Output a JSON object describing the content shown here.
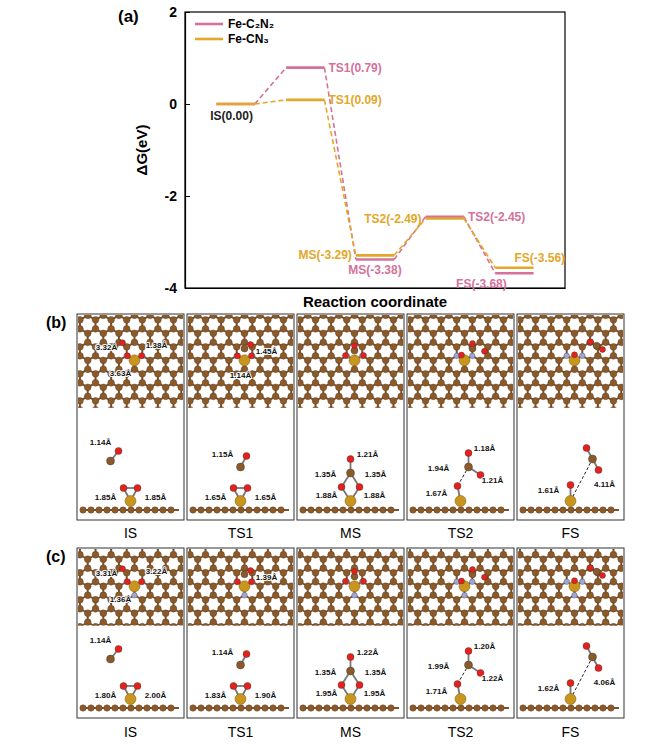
{
  "chart_data": {
    "type": "line",
    "title": "(a)",
    "x_label": "Reaction coordinate",
    "y_label": "ΔG(eV)",
    "categories": [
      null,
      null,
      null,
      null,
      null
    ],
    "series": [
      {
        "name": "Fe-C₂N₂",
        "color": "#d4729c",
        "values": [
          0.0,
          0.79,
          -3.38,
          -2.45,
          -3.68
        ],
        "value_labels": [
          null,
          "TS1(0.79)",
          "MS(-3.38)",
          "TS2(-2.45)",
          "FS(-3.68)"
        ]
      },
      {
        "name": "Fe-CN₃",
        "color": "#e3a72a",
        "values": [
          0.0,
          0.09,
          -3.29,
          -2.49,
          -3.56
        ],
        "value_labels": [
          null,
          "TS1(0.09)",
          "MS(-3.29)",
          "TS2(-2.49)",
          "FS(-3.56)"
        ]
      }
    ],
    "annotations": [
      "IS(0.00)"
    ],
    "ylim": [
      -4,
      2
    ],
    "yticks": [
      -4,
      -2,
      0,
      2
    ],
    "legend": "upper left",
    "data_labels": true,
    "tick_labels": "y",
    "line_style": "dashed"
  },
  "structures": [
    {
      "label": "(b)",
      "states": [
        {
          "name": "IS",
          "top_labels": [
            "3.32Å",
            "1.38Å",
            "3.63Å"
          ],
          "side_labels": [
            "1.14Å",
            "1.85Å",
            "1.85Å"
          ]
        },
        {
          "name": "TS1",
          "top_labels": [
            "1.45Å",
            "1.14Å"
          ],
          "side_labels": [
            "1.15Å",
            "1.65Å",
            "1.65Å"
          ]
        },
        {
          "name": "MS",
          "top_labels": [],
          "side_labels": [
            "1.35Å",
            "1.21Å",
            "1.35Å",
            "1.88Å",
            "1.88Å"
          ]
        },
        {
          "name": "TS2",
          "top_labels": [],
          "side_labels": [
            "1.94Å",
            "1.18Å",
            "1.21Å",
            "1.67Å"
          ]
        },
        {
          "name": "FS",
          "top_labels": [],
          "side_labels": [
            "1.61Å",
            "4.11Å"
          ]
        }
      ]
    },
    {
      "label": "(c)",
      "states": [
        {
          "name": "IS",
          "top_labels": [
            "3.31Å",
            "3.22Å",
            "1.36Å"
          ],
          "side_labels": [
            "1.14Å",
            "1.80Å",
            "2.00Å"
          ]
        },
        {
          "name": "TS1",
          "top_labels": [
            "1.39Å"
          ],
          "side_labels": [
            "1.14Å",
            "1.83Å",
            "1.90Å"
          ]
        },
        {
          "name": "MS",
          "top_labels": [],
          "side_labels": [
            "1.35Å",
            "1.22Å",
            "1.35Å",
            "1.95Å",
            "1.95Å"
          ]
        },
        {
          "name": "TS2",
          "top_labels": [],
          "side_labels": [
            "1.99Å",
            "1.20Å",
            "1.22Å",
            "1.71Å"
          ]
        },
        {
          "name": "FS",
          "top_labels": [],
          "side_labels": [
            "1.62Å",
            "4.06Å"
          ]
        }
      ]
    }
  ]
}
